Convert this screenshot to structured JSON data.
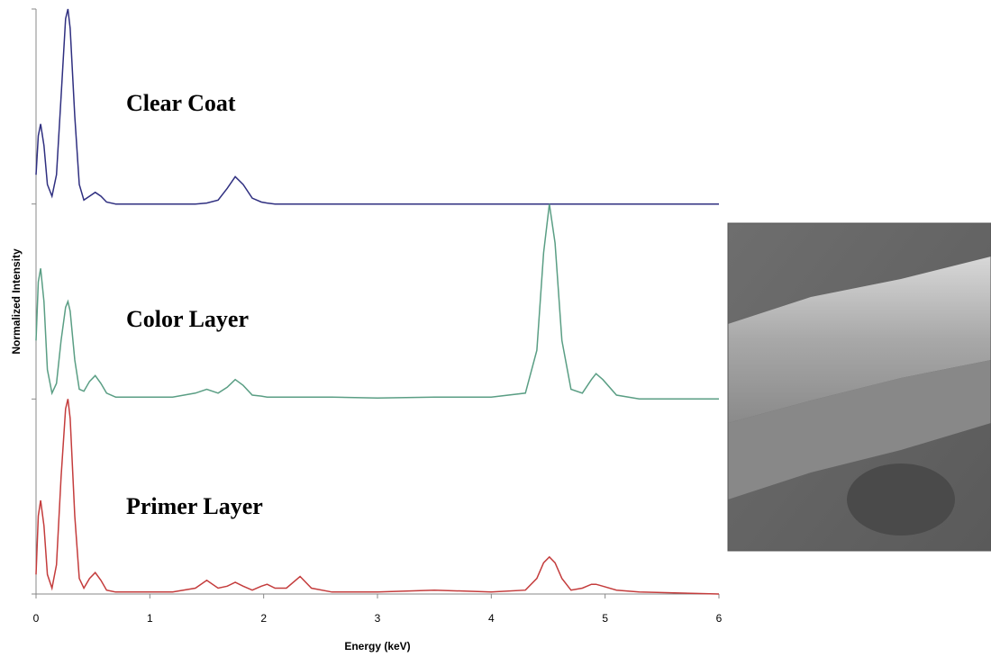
{
  "chart_data": {
    "type": "line",
    "x_label": "Energy (keV)",
    "y_label": "Normalized Intensity",
    "xlim": [
      0,
      6
    ],
    "xticks": [
      0,
      1,
      2,
      3,
      4,
      5,
      6
    ],
    "ylim": [
      0,
      3
    ],
    "yticks": [
      0,
      1,
      2,
      3
    ],
    "x": [
      0,
      0.02,
      0.04,
      0.07,
      0.1,
      0.14,
      0.18,
      0.22,
      0.26,
      0.28,
      0.3,
      0.34,
      0.38,
      0.42,
      0.47,
      0.52,
      0.57,
      0.62,
      0.7,
      0.9,
      1.2,
      1.4,
      1.5,
      1.6,
      1.68,
      1.75,
      1.82,
      1.9,
      1.98,
      2.03,
      2.1,
      2.2,
      2.32,
      2.42,
      2.6,
      3.0,
      3.5,
      4.0,
      4.3,
      4.4,
      4.46,
      4.51,
      4.56,
      4.62,
      4.7,
      4.8,
      4.88,
      4.92,
      4.98,
      5.1,
      5.3,
      6.0
    ],
    "series": [
      {
        "name": "Clear Coat",
        "color": "#2f2f80",
        "values": [
          0.15,
          0.35,
          0.41,
          0.3,
          0.1,
          0.04,
          0.15,
          0.55,
          0.95,
          1.0,
          0.9,
          0.45,
          0.1,
          0.02,
          0.04,
          0.06,
          0.04,
          0.01,
          0,
          0,
          0,
          0,
          0.005,
          0.02,
          0.08,
          0.14,
          0.1,
          0.03,
          0.01,
          0.005,
          0,
          0,
          0,
          0,
          0,
          0,
          0,
          0,
          0,
          0,
          0,
          0,
          0,
          0,
          0,
          0,
          0,
          0,
          0,
          0,
          0,
          0
        ]
      },
      {
        "name": "Color Layer",
        "color": "#5a9e84",
        "values": [
          0.3,
          0.6,
          0.67,
          0.5,
          0.15,
          0.03,
          0.08,
          0.3,
          0.47,
          0.5,
          0.45,
          0.2,
          0.05,
          0.04,
          0.09,
          0.12,
          0.08,
          0.03,
          0.01,
          0.01,
          0.01,
          0.03,
          0.05,
          0.03,
          0.06,
          0.1,
          0.07,
          0.02,
          0.015,
          0.01,
          0.01,
          0.01,
          0.01,
          0.01,
          0.01,
          0.005,
          0.01,
          0.01,
          0.03,
          0.25,
          0.75,
          1.0,
          0.8,
          0.3,
          0.05,
          0.03,
          0.1,
          0.13,
          0.1,
          0.02,
          0,
          0
        ]
      },
      {
        "name": "Primer Layer",
        "color": "#c43c3c",
        "values": [
          0.1,
          0.4,
          0.48,
          0.35,
          0.1,
          0.03,
          0.15,
          0.6,
          0.95,
          1.0,
          0.9,
          0.4,
          0.08,
          0.03,
          0.08,
          0.11,
          0.07,
          0.02,
          0.01,
          0.01,
          0.01,
          0.03,
          0.07,
          0.03,
          0.04,
          0.06,
          0.04,
          0.02,
          0.04,
          0.05,
          0.03,
          0.03,
          0.09,
          0.03,
          0.01,
          0.01,
          0.02,
          0.01,
          0.02,
          0.08,
          0.16,
          0.19,
          0.16,
          0.08,
          0.02,
          0.03,
          0.05,
          0.05,
          0.04,
          0.02,
          0.01,
          0
        ]
      }
    ]
  }
}
